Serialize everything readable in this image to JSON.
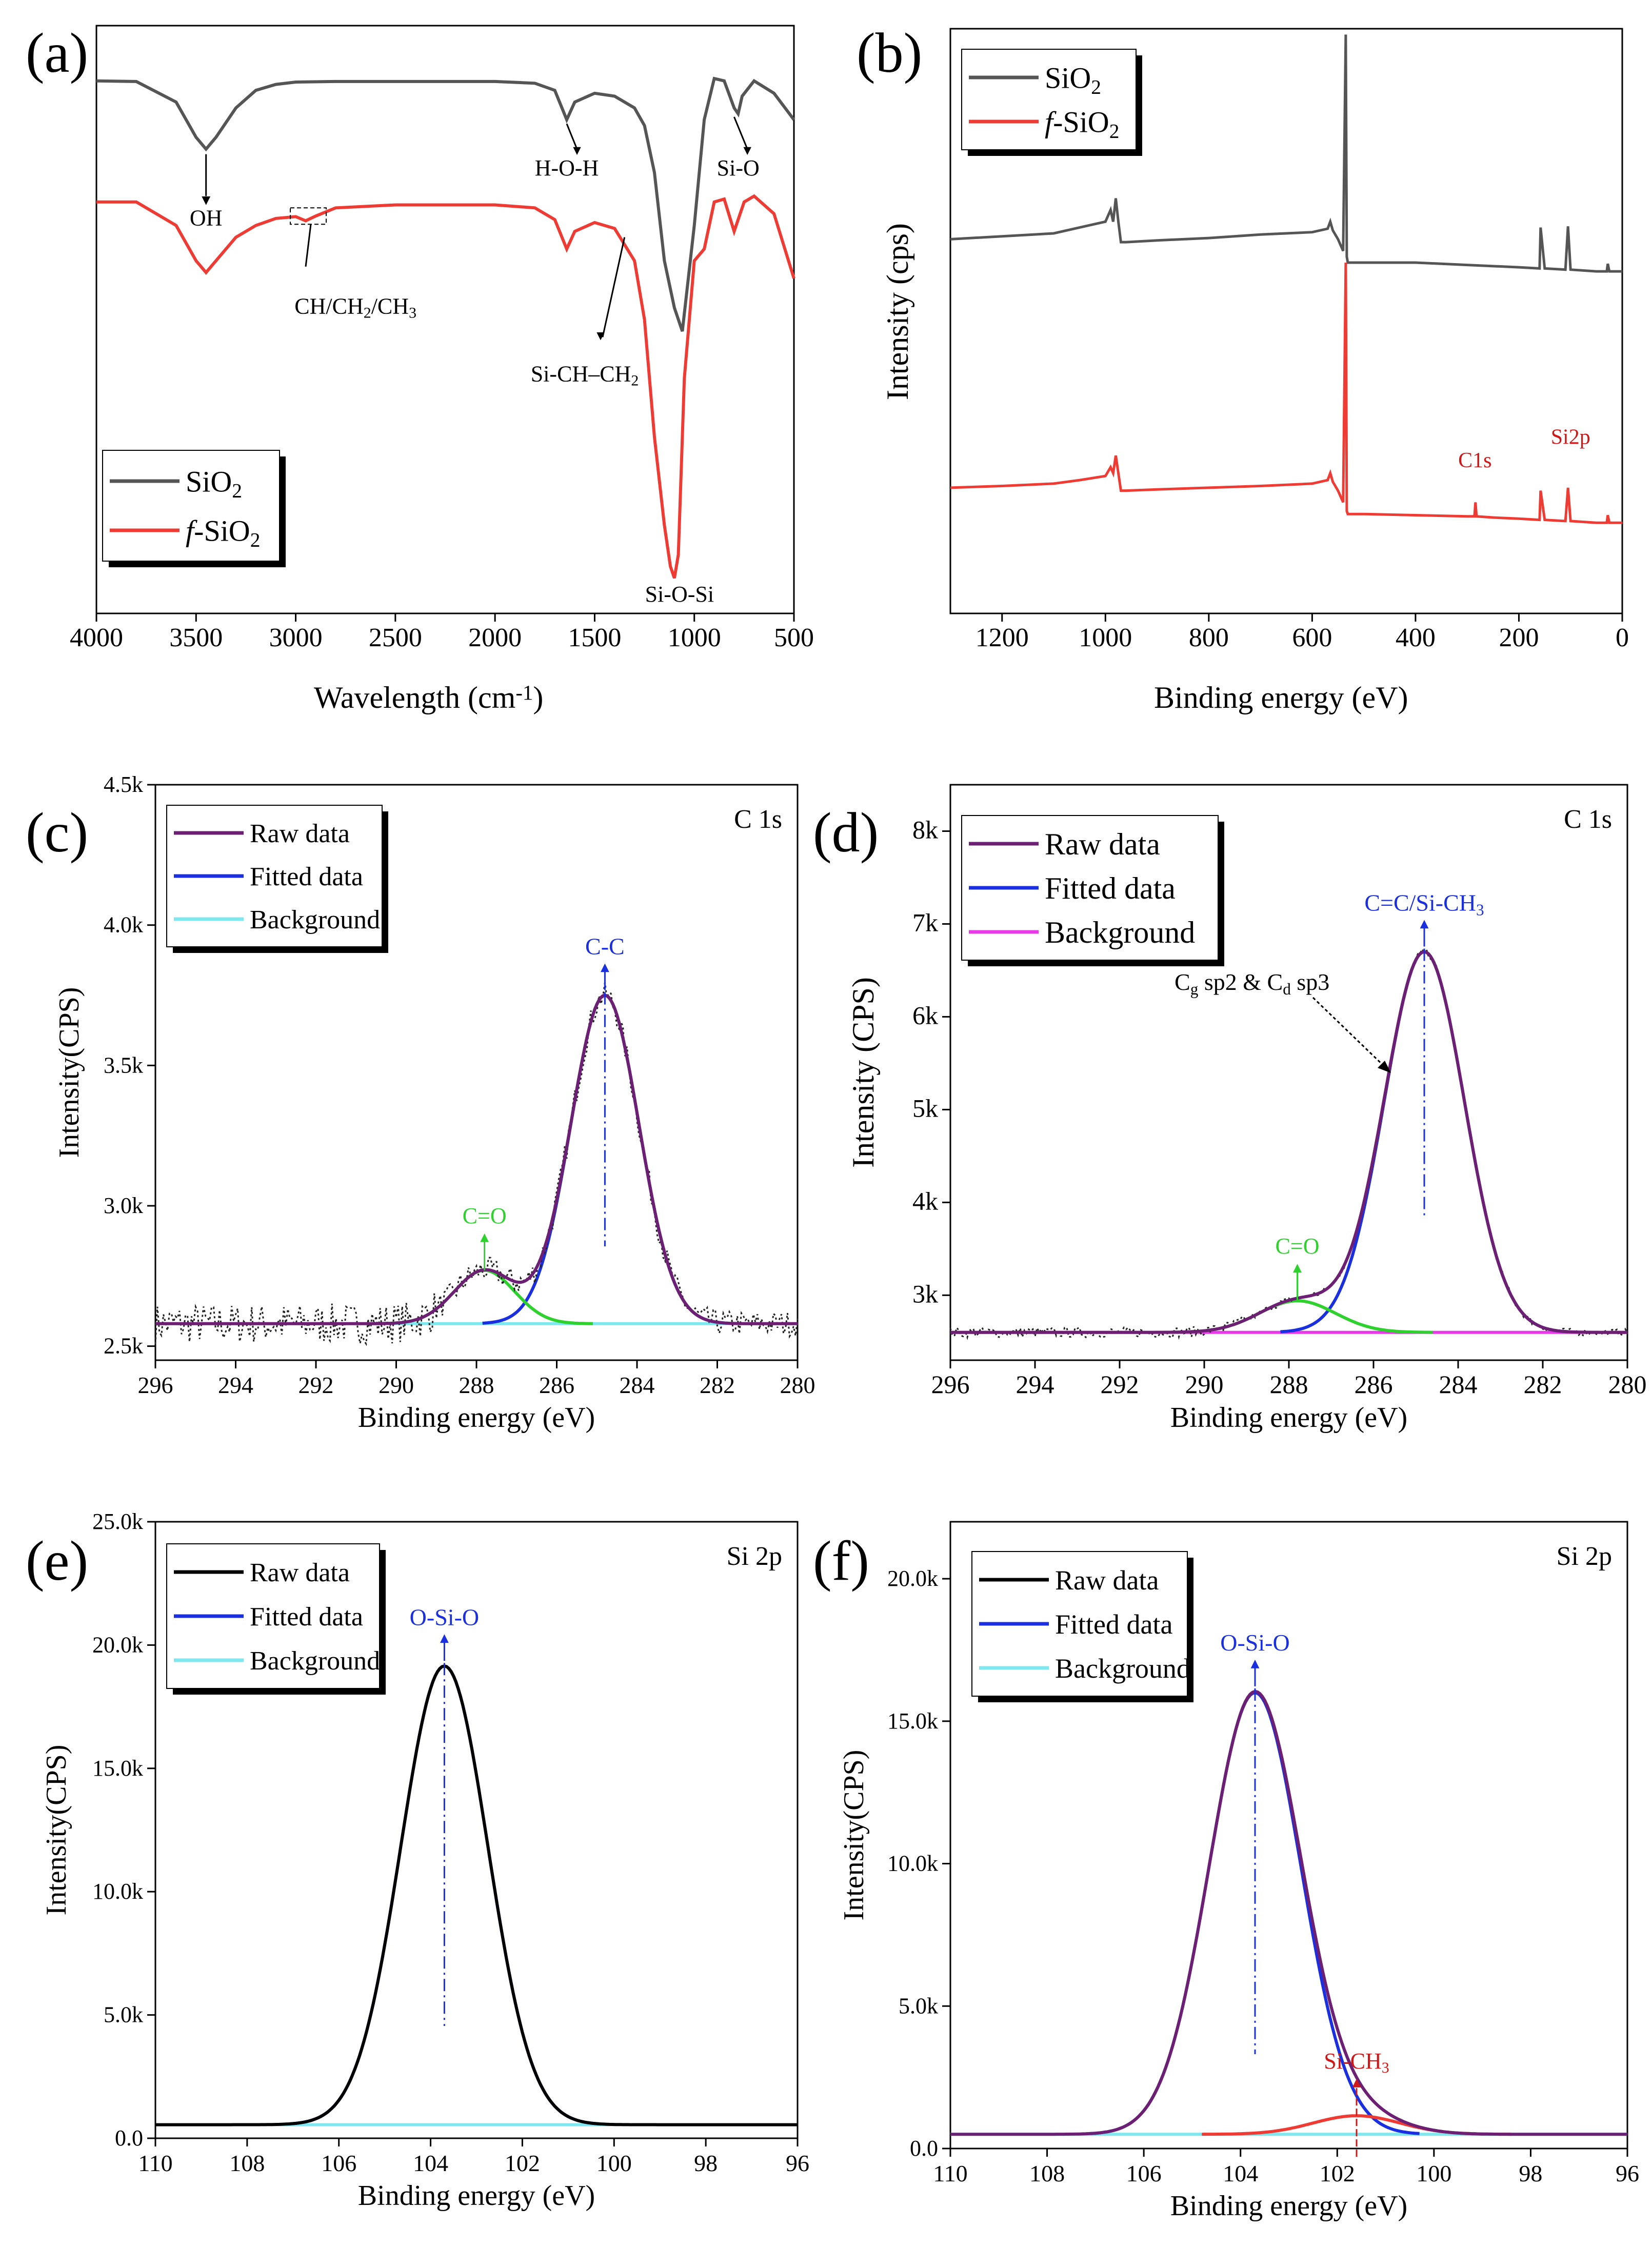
{
  "figure": {
    "background": "#ffffff"
  },
  "colors": {
    "black": "#000000",
    "gray": "#555555",
    "red": "#ee3b33",
    "blue": "#1a2fe0",
    "purple": "#6c1f73",
    "cyan": "#7fe7ee",
    "magenta": "#e83ae8",
    "green": "#2ed12e",
    "darkred": "#d01818"
  },
  "chart_data": [
    {
      "id": "a",
      "panel_label": "(a)",
      "type": "line",
      "xlabel": "Wavelength (cm",
      "xlabel_sup": "-1",
      "xlabel_tail": ")",
      "ylabel": "",
      "xlim": [
        4000,
        500
      ],
      "ylim": [
        0,
        1
      ],
      "xticks": [
        4000,
        3500,
        3000,
        2500,
        2000,
        1500,
        1000,
        500
      ],
      "xtick_labels": [
        "4000",
        "3500",
        "3000",
        "2500",
        "2000",
        "1500",
        "1000",
        "500"
      ],
      "series": [
        {
          "name": "SiO2",
          "label": "SiO",
          "label_sub": "2",
          "color": "#555555",
          "x": [
            4000,
            3800,
            3600,
            3500,
            3450,
            3400,
            3300,
            3200,
            3100,
            3000,
            2800,
            2500,
            2200,
            2000,
            1800,
            1700,
            1640,
            1600,
            1500,
            1400,
            1300,
            1250,
            1200,
            1150,
            1100,
            1060,
            1000,
            950,
            900,
            850,
            800,
            780,
            760,
            700,
            600,
            500
          ],
          "y": [
            0.906,
            0.905,
            0.87,
            0.81,
            0.79,
            0.81,
            0.86,
            0.89,
            0.9,
            0.904,
            0.905,
            0.905,
            0.905,
            0.905,
            0.902,
            0.89,
            0.84,
            0.87,
            0.885,
            0.88,
            0.86,
            0.83,
            0.75,
            0.6,
            0.52,
            0.48,
            0.66,
            0.84,
            0.91,
            0.906,
            0.86,
            0.85,
            0.88,
            0.906,
            0.885,
            0.84
          ]
        },
        {
          "name": "f-SiO2",
          "label": "-SiO",
          "label_prefix": "f",
          "label_sub": "2",
          "color": "#ee3b33",
          "x": [
            4000,
            3800,
            3600,
            3500,
            3450,
            3400,
            3300,
            3200,
            3100,
            3000,
            2950,
            2900,
            2800,
            2500,
            2200,
            2000,
            1800,
            1700,
            1640,
            1600,
            1500,
            1400,
            1300,
            1250,
            1200,
            1150,
            1120,
            1100,
            1080,
            1050,
            1000,
            950,
            900,
            850,
            800,
            750,
            700,
            600,
            500
          ],
          "y": [
            0.7,
            0.7,
            0.66,
            0.6,
            0.58,
            0.6,
            0.64,
            0.66,
            0.672,
            0.675,
            0.668,
            0.676,
            0.69,
            0.695,
            0.695,
            0.695,
            0.69,
            0.67,
            0.62,
            0.65,
            0.665,
            0.655,
            0.6,
            0.5,
            0.3,
            0.15,
            0.08,
            0.06,
            0.1,
            0.4,
            0.6,
            0.62,
            0.7,
            0.705,
            0.65,
            0.7,
            0.71,
            0.68,
            0.57
          ]
        }
      ],
      "annotations": [
        {
          "text": "OH",
          "x": 3450,
          "y": 0.66
        },
        {
          "text": "H-O-H",
          "x": 1640,
          "y": 0.745
        },
        {
          "text": "Si-O",
          "x": 780,
          "y": 0.745
        },
        {
          "text": "CH/CH",
          "sub1": "2",
          "mid": "/CH",
          "sub2": "3",
          "x": 2700,
          "y": 0.51
        },
        {
          "text": "Si-CH–CH",
          "sub1": "2",
          "x": 1550,
          "y": 0.395
        },
        {
          "text": "Si-O-Si",
          "x": 1100,
          "y": 0.02
        }
      ],
      "legend_position": "bottom-left"
    },
    {
      "id": "b",
      "panel_label": "(b)",
      "type": "line",
      "xlabel": "Binding energy (eV)",
      "ylabel": "Intensity (cps)",
      "xlim": [
        1300,
        0
      ],
      "ylim": [
        0,
        1
      ],
      "xticks": [
        1200,
        1000,
        800,
        600,
        400,
        200,
        0
      ],
      "xtick_labels": [
        "1200",
        "1000",
        "800",
        "600",
        "400",
        "200",
        "0"
      ],
      "series": [
        {
          "name": "SiO2",
          "label": "SiO",
          "label_sub": "2",
          "color": "#555555",
          "x": [
            1300,
            1200,
            1100,
            1050,
            1000,
            990,
            985,
            980,
            975,
            970,
            960,
            900,
            800,
            700,
            600,
            570,
            565,
            560,
            550,
            540,
            535,
            533,
            531,
            528,
            520,
            500,
            400,
            300,
            200,
            160,
            158,
            150,
            110,
            105,
            100,
            50,
            30,
            28,
            25,
            0
          ],
          "y": [
            0.64,
            0.645,
            0.65,
            0.66,
            0.67,
            0.69,
            0.67,
            0.71,
            0.67,
            0.635,
            0.635,
            0.638,
            0.642,
            0.648,
            0.652,
            0.658,
            0.67,
            0.655,
            0.64,
            0.62,
            0.99,
            0.61,
            0.6,
            0.6,
            0.6,
            0.6,
            0.6,
            0.596,
            0.592,
            0.59,
            0.66,
            0.59,
            0.588,
            0.662,
            0.588,
            0.585,
            0.585,
            0.598,
            0.585,
            0.585
          ]
        },
        {
          "name": "f-SiO2",
          "label": "-SiO",
          "label_prefix": "f",
          "label_sub": "2",
          "color": "#ee3b33",
          "x": [
            1300,
            1200,
            1100,
            1050,
            1000,
            990,
            985,
            980,
            975,
            970,
            960,
            900,
            800,
            700,
            600,
            570,
            565,
            560,
            550,
            540,
            535,
            533,
            531,
            528,
            520,
            500,
            400,
            300,
            286,
            284,
            282,
            250,
            200,
            160,
            158,
            150,
            110,
            105,
            100,
            50,
            30,
            28,
            25,
            0
          ],
          "y": [
            0.215,
            0.218,
            0.222,
            0.228,
            0.235,
            0.25,
            0.24,
            0.27,
            0.24,
            0.21,
            0.21,
            0.212,
            0.215,
            0.218,
            0.222,
            0.228,
            0.24,
            0.225,
            0.21,
            0.19,
            0.6,
            0.175,
            0.17,
            0.17,
            0.17,
            0.17,
            0.168,
            0.166,
            0.166,
            0.19,
            0.166,
            0.164,
            0.162,
            0.16,
            0.21,
            0.16,
            0.158,
            0.215,
            0.158,
            0.155,
            0.155,
            0.168,
            0.155,
            0.155
          ]
        }
      ],
      "annotations": [
        {
          "text": "C1s",
          "x": 285,
          "y": 0.25
        },
        {
          "text": "Si2p",
          "x": 100,
          "y": 0.29
        }
      ],
      "legend_position": "top-left"
    },
    {
      "id": "c",
      "panel_label": "(c)",
      "type": "line",
      "corner_label": "C 1s",
      "xlabel": "Binding energy (eV)",
      "ylabel": "Intensity(CPS)",
      "xlim": [
        296,
        280
      ],
      "ylim": [
        2450,
        4500
      ],
      "xticks": [
        296,
        294,
        292,
        290,
        288,
        286,
        284,
        282,
        280
      ],
      "xtick_labels": [
        "296",
        "294",
        "292",
        "290",
        "288",
        "286",
        "284",
        "282",
        "280"
      ],
      "yticks": [
        2500,
        3000,
        3500,
        4000,
        4500
      ],
      "ytick_labels": [
        "2.5k",
        "3.0k",
        "3.5k",
        "4.0k",
        "4.5k"
      ],
      "baseline": 2580,
      "peaks": [
        {
          "center": 284.8,
          "amplitude": 1170,
          "sigma": 0.85,
          "label": "C-C",
          "label_color": "#1a2fe0"
        },
        {
          "center": 287.8,
          "amplitude": 190,
          "sigma": 0.75,
          "label": "C=O",
          "label_color": "#2ed12e"
        }
      ],
      "series": [
        {
          "name": "Raw data",
          "color": "#6c1f73"
        },
        {
          "name": "Fitted data",
          "color": "#1a2fe0"
        },
        {
          "name": "Background",
          "color": "#7fe7ee"
        }
      ],
      "legend_position": "top-left"
    },
    {
      "id": "d",
      "panel_label": "(d)",
      "type": "line",
      "corner_label": "C 1s",
      "xlabel": "Binding energy (eV)",
      "ylabel": "Intensity (CPS)",
      "xlim": [
        296,
        280
      ],
      "ylim": [
        2300,
        8500
      ],
      "xticks": [
        296,
        294,
        292,
        290,
        288,
        286,
        284,
        282,
        280
      ],
      "xtick_labels": [
        "296",
        "294",
        "292",
        "290",
        "288",
        "286",
        "284",
        "282",
        "280"
      ],
      "yticks": [
        3000,
        4000,
        5000,
        6000,
        7000,
        8000
      ],
      "ytick_labels": [
        "3k",
        "4k",
        "5k",
        "6k",
        "7k",
        "8k"
      ],
      "baseline": 2600,
      "peaks": [
        {
          "center": 284.8,
          "amplitude": 4100,
          "sigma": 0.95,
          "label": "C=C/Si-CH",
          "label_sub": "3",
          "label_color": "#1a2fe0"
        },
        {
          "center": 287.8,
          "amplitude": 340,
          "sigma": 0.9,
          "label": "C=O",
          "label_color": "#2ed12e"
        }
      ],
      "extra_annotation": {
        "text": "C",
        "sub1": "g",
        "mid": " sp2 & C",
        "sub2": "d",
        "tail": " sp3"
      },
      "series": [
        {
          "name": "Raw data",
          "color": "#6c1f73"
        },
        {
          "name": "Fitted data",
          "color": "#1a2fe0"
        },
        {
          "name": "Background",
          "color": "#e83ae8"
        }
      ],
      "legend_position": "top-left"
    },
    {
      "id": "e",
      "panel_label": "(e)",
      "type": "line",
      "corner_label": "Si 2p",
      "xlabel": "Binding energy (eV)",
      "ylabel": "Intensity(CPS)",
      "xlim": [
        110,
        96
      ],
      "ylim": [
        0,
        25000
      ],
      "xticks": [
        110,
        108,
        106,
        104,
        102,
        100,
        98,
        96
      ],
      "xtick_labels": [
        "110",
        "108",
        "106",
        "104",
        "102",
        "100",
        "98",
        "96"
      ],
      "yticks": [
        0,
        5000,
        10000,
        15000,
        20000,
        25000
      ],
      "ytick_labels": [
        "0.0",
        "5.0k",
        "10.0k",
        "15.0k",
        "20.0k",
        "25.0k"
      ],
      "baseline": 550,
      "peaks": [
        {
          "center": 103.7,
          "amplitude": 18600,
          "sigma": 0.95,
          "label": "O-Si-O",
          "label_color": "#1a2fe0"
        }
      ],
      "series": [
        {
          "name": "Raw data",
          "color": "#000000"
        },
        {
          "name": "Fitted data",
          "color": "#1a2fe0"
        },
        {
          "name": "Background",
          "color": "#7fe7ee"
        }
      ],
      "legend_position": "top-left"
    },
    {
      "id": "f",
      "panel_label": "(f)",
      "type": "line",
      "corner_label": "Si 2p",
      "xlabel": "Binding energy (eV)",
      "ylabel": "Intensity(CPS)",
      "xlim": [
        110,
        96
      ],
      "ylim": [
        0,
        22000
      ],
      "xticks": [
        110,
        108,
        106,
        104,
        102,
        100,
        98,
        96
      ],
      "xtick_labels": [
        "110",
        "108",
        "106",
        "104",
        "102",
        "100",
        "98",
        "96"
      ],
      "yticks": [
        0,
        5000,
        10000,
        15000,
        20000
      ],
      "ytick_labels": [
        "0.0",
        "5.0k",
        "10.0k",
        "15.0k",
        "20.0k"
      ],
      "baseline": 500,
      "peaks": [
        {
          "center": 103.7,
          "amplitude": 15500,
          "sigma": 0.95,
          "label": "O-Si-O",
          "label_color": "#1a2fe0"
        },
        {
          "center": 101.6,
          "amplitude": 650,
          "sigma": 0.9,
          "label": "Si-CH",
          "label_sub": "3",
          "label_color": "#d01818"
        }
      ],
      "series": [
        {
          "name": "Raw data",
          "color": "#000000"
        },
        {
          "name": "Fitted data",
          "color": "#1a2fe0"
        },
        {
          "name": "Background",
          "color": "#7fe7ee"
        }
      ],
      "legend_position": "top-left"
    }
  ]
}
